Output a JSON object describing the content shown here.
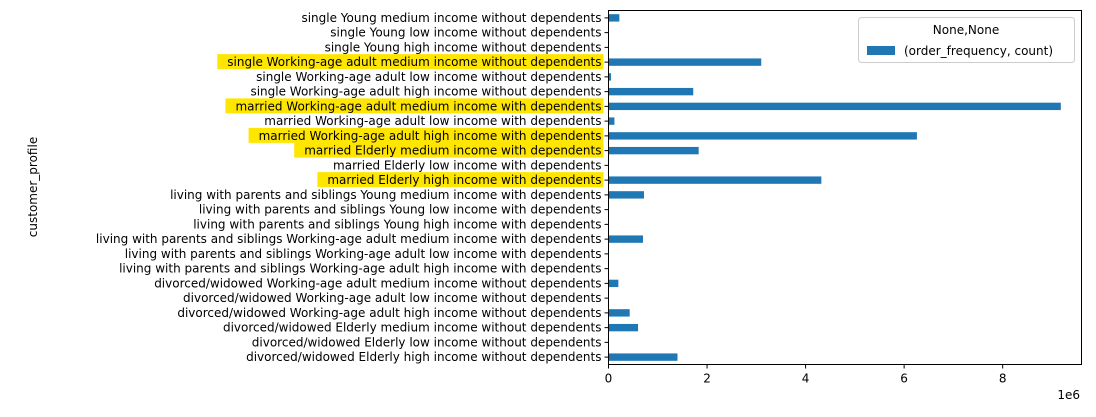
{
  "chart_data": {
    "type": "bar",
    "orientation": "horizontal",
    "ylabel": "customer_profile",
    "xlabel": "",
    "x_offset_text": "1e6",
    "xlim": [
      0,
      9.6
    ],
    "x_ticks": [
      0,
      2,
      4,
      6,
      8
    ],
    "legend": {
      "title": "None,None",
      "placement": "top-right",
      "entries": [
        "(order_frequency, count)"
      ]
    },
    "grid": false,
    "bar_color": "#1f77b4",
    "highlight_color": "#ffe600",
    "categories": [
      "single Young medium income without dependents",
      "single Young low income without dependents",
      "single Young high income without dependents",
      "single Working-age adult medium income without dependents",
      "single Working-age adult low income without dependents",
      "single Working-age adult high income without dependents",
      "married Working-age adult medium income with dependents",
      "married Working-age adult low income with dependents",
      "married Working-age adult high income with dependents",
      "married Elderly medium income with dependents",
      "married Elderly low income with dependents",
      "married Elderly high income with dependents",
      "living with parents and siblings Young medium income with dependents",
      "living with parents and siblings Young low income with dependents",
      "living with parents and siblings Young high income with dependents",
      "living with parents and siblings Working-age adult medium income with dependents",
      "living with parents and siblings Working-age adult low income with dependents",
      "living with parents and siblings Working-age adult high income with dependents",
      "divorced/widowed Working-age adult medium income without dependents",
      "divorced/widowed Working-age adult low income without dependents",
      "divorced/widowed Working-age adult high income without dependents",
      "divorced/widowed Elderly medium income without dependents",
      "divorced/widowed Elderly low income without dependents",
      "divorced/widowed Elderly high income without dependents"
    ],
    "series": [
      {
        "name": "(order_frequency, count)",
        "values": [
          0.22,
          0.0,
          0.0,
          3.1,
          0.05,
          1.72,
          9.18,
          0.12,
          6.26,
          1.83,
          0.0,
          4.32,
          0.72,
          0.0,
          0.0,
          0.7,
          0.0,
          0.01,
          0.2,
          0.0,
          0.43,
          0.6,
          0.0,
          1.4
        ]
      }
    ],
    "highlighted": [
      "single Working-age adult medium income without dependents",
      "married Working-age adult medium income with dependents",
      "married Working-age adult high income with dependents",
      "married Elderly medium income with dependents",
      "married Elderly high income with dependents"
    ]
  }
}
